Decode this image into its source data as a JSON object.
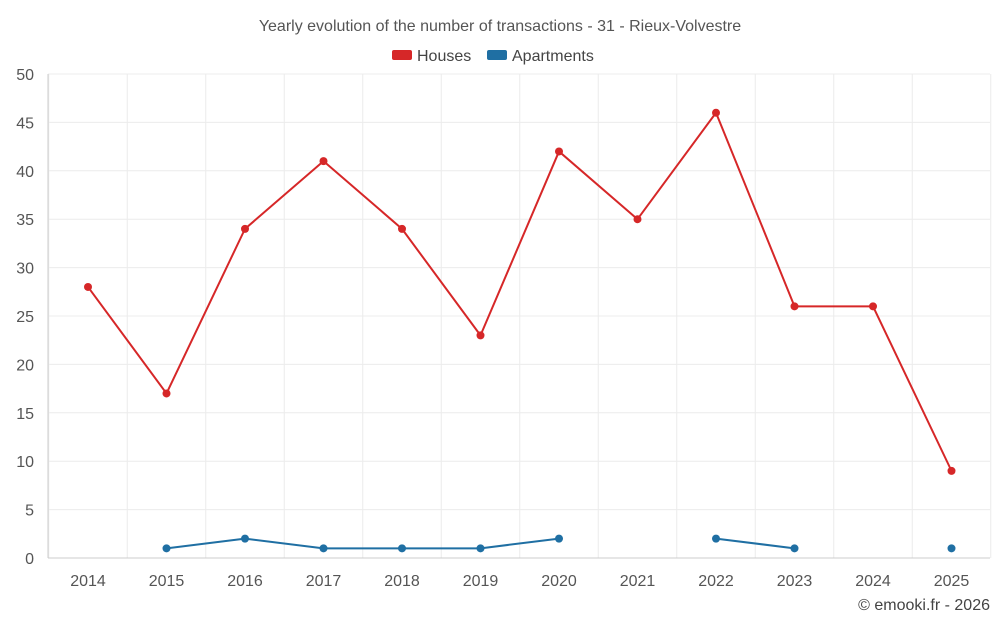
{
  "chart_data": {
    "type": "line",
    "title": "Yearly evolution of the number of transactions - 31 - Rieux-Volvestre",
    "categories": [
      "2014",
      "2015",
      "2016",
      "2017",
      "2018",
      "2019",
      "2020",
      "2021",
      "2022",
      "2023",
      "2024",
      "2025"
    ],
    "series": [
      {
        "name": "Houses",
        "color": "#d62728",
        "values": [
          28,
          17,
          34,
          41,
          34,
          23,
          42,
          35,
          46,
          26,
          26,
          9
        ]
      },
      {
        "name": "Apartments",
        "color": "#1f6fa3",
        "values": [
          null,
          1,
          2,
          1,
          1,
          1,
          2,
          null,
          2,
          1,
          null,
          1
        ]
      }
    ],
    "ylim": [
      0,
      50
    ],
    "yticks": [
      0,
      5,
      10,
      15,
      20,
      25,
      30,
      35,
      40,
      45,
      50
    ],
    "xlabel": "",
    "ylabel": "",
    "grid": true,
    "legend": "top-center"
  },
  "footer": {
    "credit": "© emooki.fr - 2026"
  }
}
